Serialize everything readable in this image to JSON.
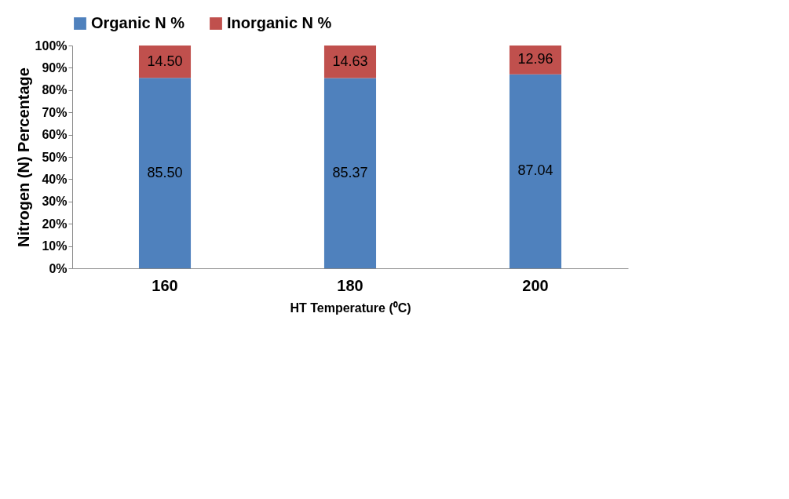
{
  "chart_data": {
    "type": "bar",
    "stacked": true,
    "xlabel": "HT Temperature (⁰C)",
    "ylabel": "Nitrogen (N) Percentage",
    "categories": [
      "160",
      "180",
      "200"
    ],
    "series": [
      {
        "name": "Organic N %",
        "color": "#4f81bd",
        "values": [
          85.5,
          85.37,
          87.04
        ],
        "value_labels": [
          "85.50",
          "85.37",
          "87.04"
        ]
      },
      {
        "name": "Inorganic N %",
        "color": "#c0504d",
        "values": [
          14.5,
          14.63,
          12.96
        ],
        "value_labels": [
          "14.50",
          "14.63",
          "12.96"
        ]
      }
    ],
    "ylim": [
      0,
      100
    ],
    "yticks": [
      {
        "value": 0,
        "label": "0%"
      },
      {
        "value": 10,
        "label": "10%"
      },
      {
        "value": 20,
        "label": "20%"
      },
      {
        "value": 30,
        "label": "30%"
      },
      {
        "value": 40,
        "label": "40%"
      },
      {
        "value": 50,
        "label": "50%"
      },
      {
        "value": 60,
        "label": "60%"
      },
      {
        "value": 70,
        "label": "70%"
      },
      {
        "value": 80,
        "label": "80%"
      },
      {
        "value": 90,
        "label": "90%"
      },
      {
        "value": 100,
        "label": "100%"
      }
    ],
    "grid": false,
    "legend": "top"
  }
}
